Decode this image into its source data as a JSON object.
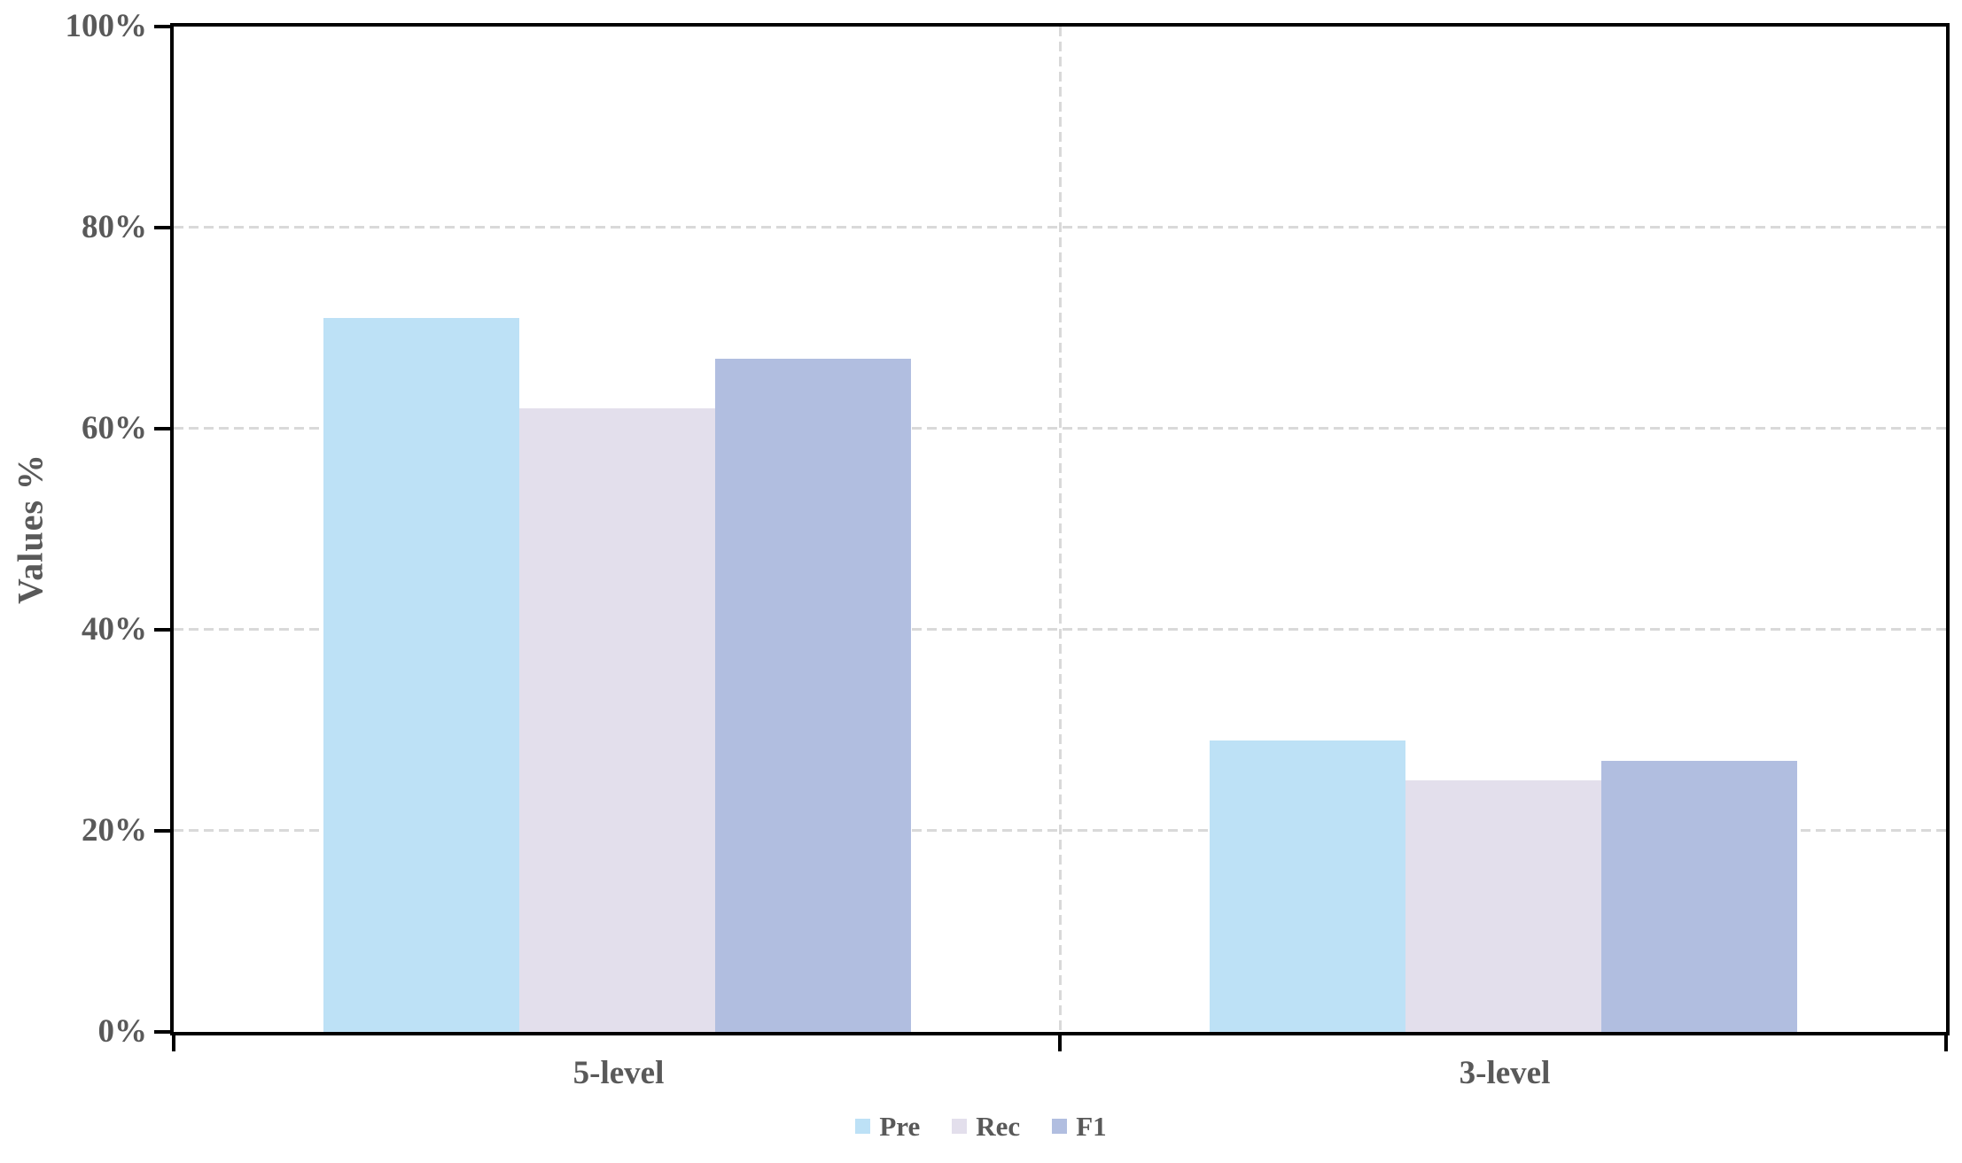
{
  "chart_data": {
    "type": "bar",
    "title": "",
    "categories": [
      "5-level",
      "3-level"
    ],
    "series": [
      {
        "name": "Pre",
        "color": "#BDE1F6",
        "values": [
          71,
          29
        ]
      },
      {
        "name": "Rec",
        "color": "#E3DFEC",
        "values": [
          62,
          25
        ]
      },
      {
        "name": "F1",
        "color": "#B1BEE0",
        "values": [
          67,
          27
        ]
      }
    ],
    "xlabel": "",
    "ylabel": "Values %",
    "ylim": [
      0,
      100
    ],
    "ytick_step": 20,
    "ytick_labels": [
      "0%",
      "20%",
      "40%",
      "60%",
      "80%",
      "100%"
    ],
    "grid": {
      "horizontal": "dashed every 20%",
      "vertical_category_separator": true,
      "plot_frame": "solid black rectangle"
    },
    "legend_position": "bottom-center",
    "value_unit": "percent"
  },
  "style": {
    "axis_color": "#000000",
    "grid_color": "#D9D9D9",
    "text_color": "#595959",
    "background_color": "#FFFFFF"
  }
}
